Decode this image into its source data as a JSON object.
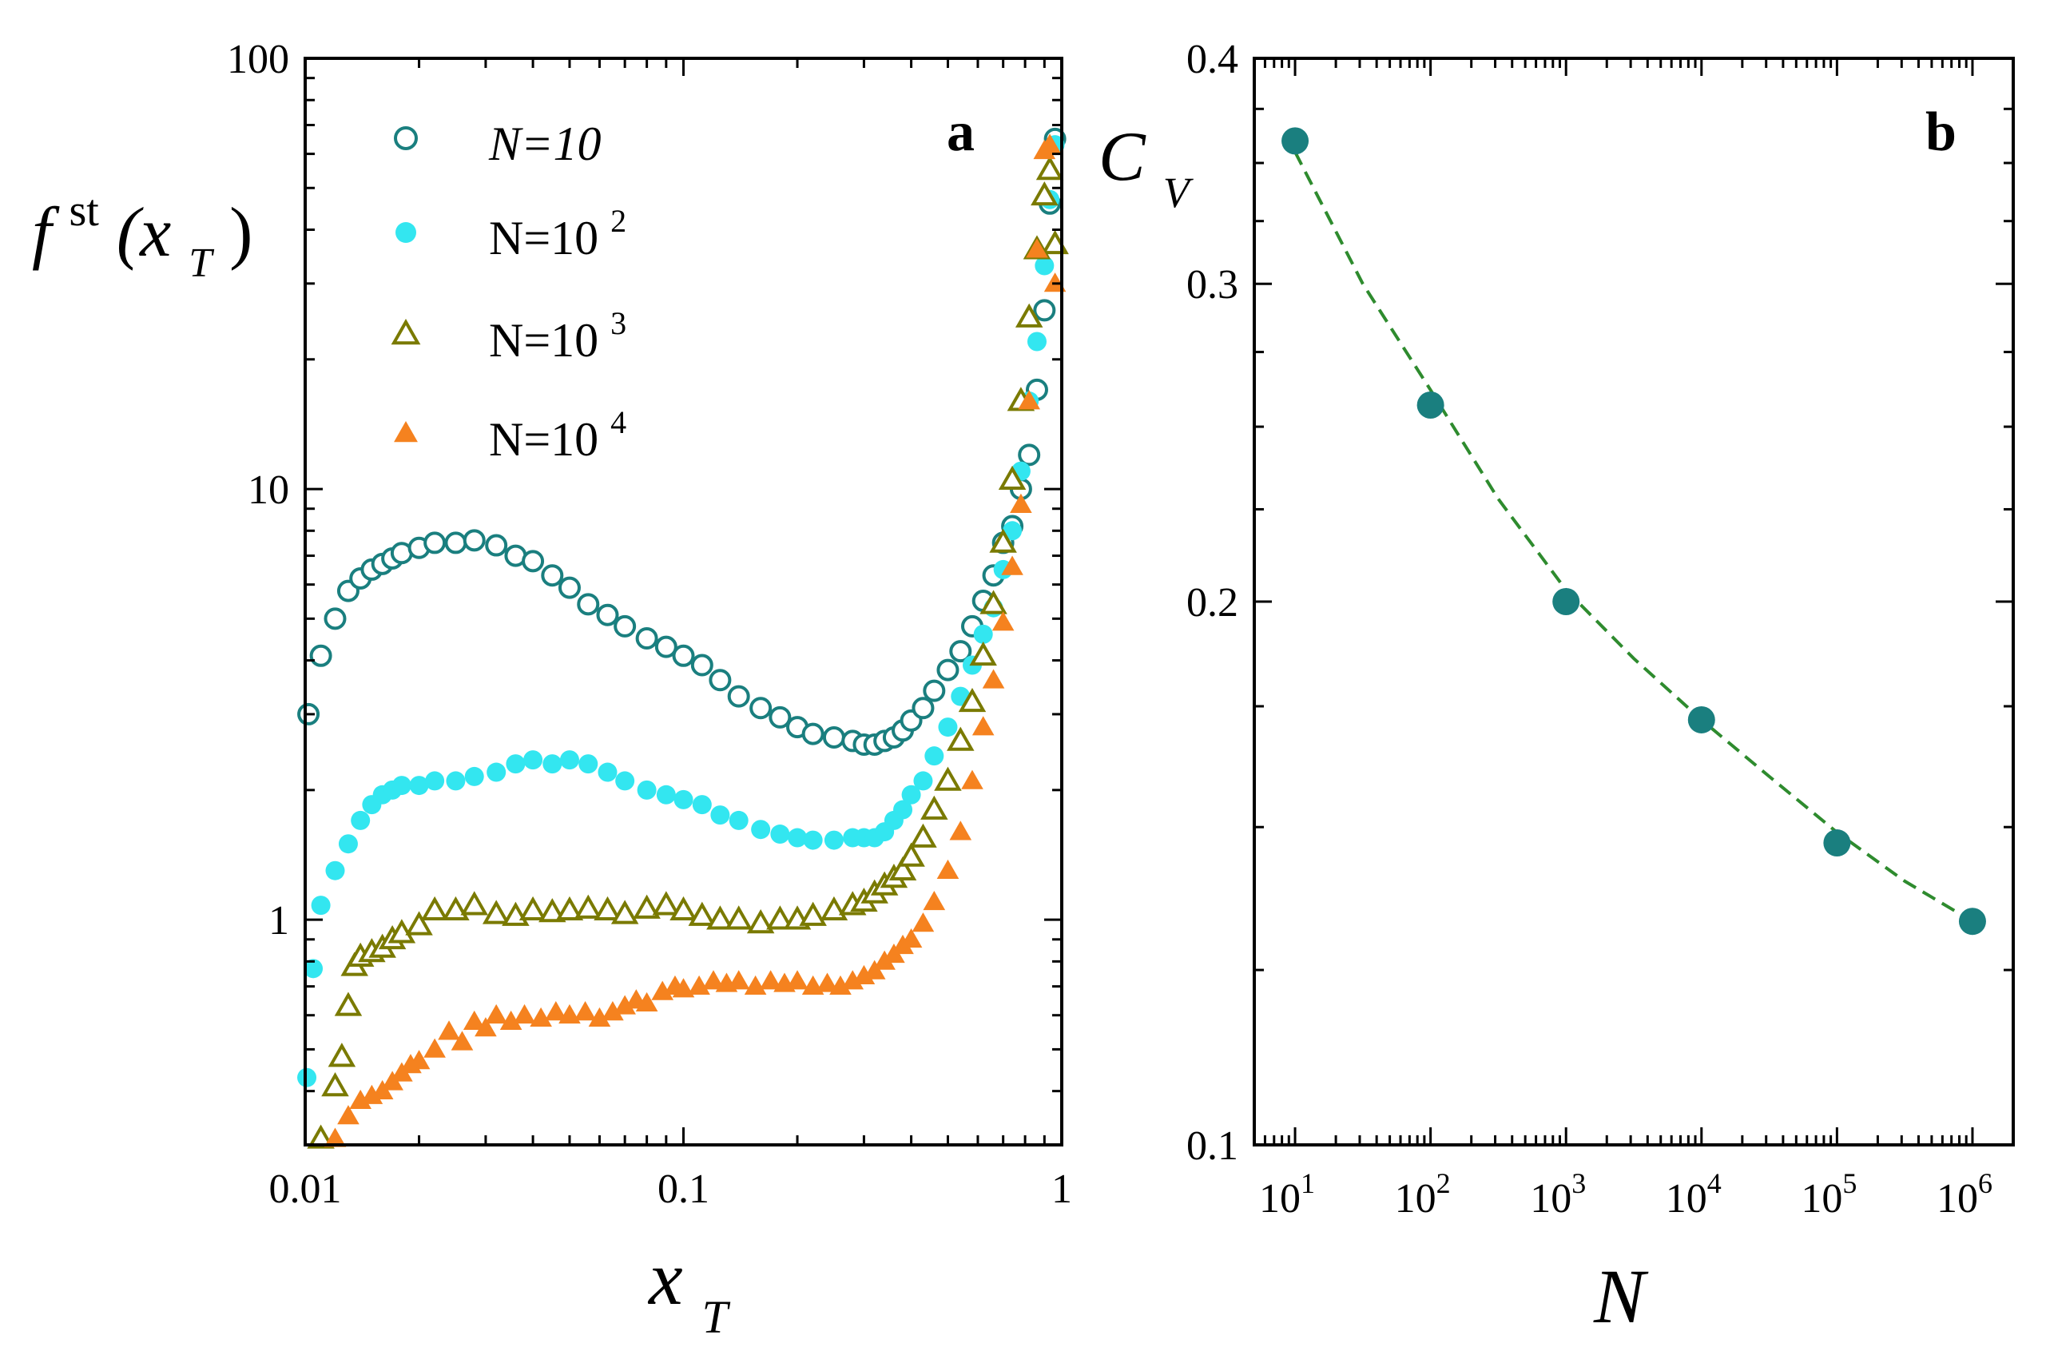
{
  "chart_data": [
    {
      "panel": "a",
      "type": "scatter",
      "xscale": "log",
      "yscale": "log",
      "xlim": [
        0.01,
        1
      ],
      "ylim": [
        0.3,
        100
      ],
      "xticks": [
        "0.01",
        "0.1",
        "1"
      ],
      "yticks": [
        "1",
        "10",
        "100"
      ],
      "xlabel": "x",
      "xlabel_sub": "T",
      "ylabel_f": "f",
      "ylabel_sup": "st",
      "ylabel_arg": "(x",
      "ylabel_sub": "T",
      "ylabel_close": ")",
      "legend_position": "top-left",
      "series": [
        {
          "name": "N=10",
          "legend_main": "N=10",
          "legend_sup": "",
          "marker": "circle-open",
          "color": "#1a7f7f",
          "x": [
            0.0102,
            0.011,
            0.012,
            0.013,
            0.014,
            0.015,
            0.016,
            0.017,
            0.018,
            0.02,
            0.022,
            0.025,
            0.028,
            0.032,
            0.036,
            0.04,
            0.045,
            0.05,
            0.056,
            0.063,
            0.07,
            0.08,
            0.09,
            0.1,
            0.112,
            0.125,
            0.14,
            0.16,
            0.18,
            0.2,
            0.22,
            0.25,
            0.28,
            0.3,
            0.32,
            0.34,
            0.36,
            0.38,
            0.4,
            0.43,
            0.46,
            0.5,
            0.54,
            0.58,
            0.62,
            0.66,
            0.7,
            0.74,
            0.78,
            0.82,
            0.86,
            0.9,
            0.93,
            0.96
          ],
          "y": [
            3.0,
            4.1,
            5.0,
            5.8,
            6.2,
            6.5,
            6.7,
            6.9,
            7.1,
            7.3,
            7.5,
            7.5,
            7.6,
            7.4,
            7.0,
            6.8,
            6.3,
            5.9,
            5.4,
            5.1,
            4.8,
            4.5,
            4.3,
            4.1,
            3.9,
            3.6,
            3.3,
            3.1,
            2.95,
            2.8,
            2.7,
            2.65,
            2.6,
            2.55,
            2.55,
            2.6,
            2.65,
            2.75,
            2.9,
            3.1,
            3.4,
            3.8,
            4.2,
            4.8,
            5.5,
            6.3,
            7.5,
            8.2,
            10.0,
            12.0,
            17.0,
            26.0,
            46.0,
            65.0
          ]
        },
        {
          "name": "N=10^2",
          "legend_main": "N=10",
          "legend_sup": "2",
          "marker": "circle-filled",
          "color": "#33e6f0",
          "x": [
            0.0101,
            0.0105,
            0.011,
            0.012,
            0.013,
            0.014,
            0.015,
            0.016,
            0.017,
            0.018,
            0.02,
            0.022,
            0.025,
            0.028,
            0.032,
            0.036,
            0.04,
            0.045,
            0.05,
            0.056,
            0.063,
            0.07,
            0.08,
            0.09,
            0.1,
            0.112,
            0.125,
            0.14,
            0.16,
            0.18,
            0.2,
            0.22,
            0.25,
            0.28,
            0.3,
            0.32,
            0.34,
            0.36,
            0.38,
            0.4,
            0.43,
            0.46,
            0.5,
            0.54,
            0.58,
            0.62,
            0.66,
            0.7,
            0.74,
            0.78,
            0.82,
            0.86,
            0.9,
            0.93,
            0.96
          ],
          "y": [
            0.43,
            0.77,
            1.08,
            1.3,
            1.5,
            1.7,
            1.85,
            1.95,
            2.0,
            2.05,
            2.05,
            2.1,
            2.1,
            2.15,
            2.2,
            2.3,
            2.35,
            2.3,
            2.35,
            2.3,
            2.2,
            2.1,
            2.0,
            1.95,
            1.9,
            1.85,
            1.75,
            1.7,
            1.62,
            1.58,
            1.55,
            1.53,
            1.53,
            1.55,
            1.55,
            1.55,
            1.6,
            1.7,
            1.8,
            1.95,
            2.1,
            2.4,
            2.8,
            3.3,
            3.9,
            4.6,
            5.3,
            6.5,
            8.0,
            11.0,
            16.0,
            22.0,
            33.0,
            47.0,
            63.0
          ]
        },
        {
          "name": "N=10^3",
          "legend_main": "N=10",
          "legend_sup": "3",
          "marker": "triangle-open",
          "color": "#7a7a00",
          "x": [
            0.011,
            0.012,
            0.0125,
            0.013,
            0.0135,
            0.014,
            0.015,
            0.016,
            0.017,
            0.018,
            0.02,
            0.022,
            0.025,
            0.028,
            0.032,
            0.036,
            0.04,
            0.045,
            0.05,
            0.056,
            0.063,
            0.07,
            0.08,
            0.09,
            0.1,
            0.112,
            0.125,
            0.14,
            0.16,
            0.18,
            0.2,
            0.22,
            0.25,
            0.28,
            0.3,
            0.32,
            0.34,
            0.36,
            0.38,
            0.4,
            0.43,
            0.46,
            0.5,
            0.54,
            0.58,
            0.62,
            0.66,
            0.7,
            0.74,
            0.78,
            0.82,
            0.86,
            0.9,
            0.93,
            0.96
          ],
          "y": [
            0.31,
            0.41,
            0.48,
            0.63,
            0.78,
            0.82,
            0.84,
            0.86,
            0.9,
            0.93,
            0.97,
            1.05,
            1.05,
            1.08,
            1.03,
            1.02,
            1.05,
            1.04,
            1.05,
            1.06,
            1.05,
            1.03,
            1.06,
            1.08,
            1.05,
            1.02,
            1.0,
            1.0,
            0.98,
            1.0,
            1.0,
            1.02,
            1.05,
            1.08,
            1.1,
            1.15,
            1.2,
            1.25,
            1.3,
            1.4,
            1.55,
            1.8,
            2.1,
            2.6,
            3.2,
            4.1,
            5.4,
            7.5,
            10.5,
            16.0,
            25.0,
            36.0,
            48.0,
            55.0,
            37.0
          ]
        },
        {
          "name": "N=10^4",
          "legend_main": "N=10",
          "legend_sup": "4",
          "marker": "triangle-filled",
          "color": "#f5821f",
          "x": [
            0.012,
            0.013,
            0.014,
            0.015,
            0.016,
            0.017,
            0.018,
            0.019,
            0.02,
            0.022,
            0.024,
            0.026,
            0.028,
            0.03,
            0.032,
            0.035,
            0.038,
            0.042,
            0.046,
            0.05,
            0.055,
            0.06,
            0.065,
            0.07,
            0.075,
            0.08,
            0.088,
            0.095,
            0.1,
            0.11,
            0.12,
            0.13,
            0.14,
            0.155,
            0.17,
            0.185,
            0.2,
            0.22,
            0.24,
            0.26,
            0.28,
            0.3,
            0.32,
            0.34,
            0.36,
            0.38,
            0.4,
            0.43,
            0.46,
            0.5,
            0.54,
            0.58,
            0.62,
            0.66,
            0.7,
            0.74,
            0.78,
            0.82,
            0.86,
            0.9,
            0.93,
            0.96
          ],
          "y": [
            0.31,
            0.35,
            0.38,
            0.39,
            0.4,
            0.42,
            0.44,
            0.46,
            0.47,
            0.5,
            0.55,
            0.52,
            0.58,
            0.56,
            0.6,
            0.58,
            0.6,
            0.59,
            0.61,
            0.6,
            0.61,
            0.59,
            0.61,
            0.63,
            0.65,
            0.64,
            0.68,
            0.7,
            0.69,
            0.7,
            0.72,
            0.71,
            0.72,
            0.7,
            0.72,
            0.71,
            0.72,
            0.7,
            0.71,
            0.7,
            0.72,
            0.74,
            0.76,
            0.8,
            0.83,
            0.87,
            0.9,
            0.98,
            1.1,
            1.3,
            1.6,
            2.1,
            2.8,
            3.6,
            4.9,
            6.6,
            9.2,
            16.0,
            36.0,
            61.0,
            63.0,
            30.0
          ]
        }
      ],
      "panel_letter": "a"
    },
    {
      "panel": "b",
      "type": "scatter",
      "xscale": "log",
      "yscale": "log",
      "xlim": [
        5,
        2000000
      ],
      "ylim": [
        0.1,
        0.4
      ],
      "xticks_base": "10",
      "xticks_exp": [
        "1",
        "2",
        "3",
        "4",
        "5",
        "6"
      ],
      "yticks": [
        "0.1",
        "0.2",
        "0.3",
        "0.4"
      ],
      "xlabel": "N",
      "ylabel_main": "C",
      "ylabel_sub": "V",
      "panel_letter": "b",
      "series": [
        {
          "name": "C_V",
          "marker": "circle-filled",
          "color": "#1a7f7f",
          "x": [
            10,
            100,
            1000,
            10000,
            100000,
            1000000
          ],
          "y": [
            0.36,
            0.257,
            0.2,
            0.172,
            0.147,
            0.133
          ]
        }
      ],
      "fit": {
        "style": "dashed",
        "color": "#2e8b2e",
        "x": [
          10,
          31.6,
          100,
          316,
          1000,
          3162,
          10000,
          31623,
          100000,
          316228,
          1000000
        ],
        "y": [
          0.355,
          0.3,
          0.262,
          0.228,
          0.203,
          0.186,
          0.172,
          0.16,
          0.149,
          0.14,
          0.133
        ]
      }
    }
  ]
}
